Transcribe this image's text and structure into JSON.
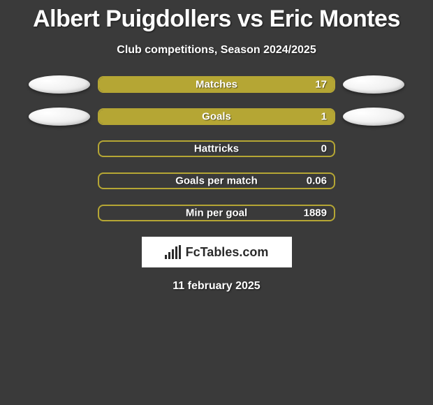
{
  "title": "Albert Puigdollers vs Eric Montes",
  "subtitle": "Club competitions, Season 2024/2025",
  "date": "11 february 2025",
  "logo_text": "FcTables.com",
  "background_color": "#3a3a3a",
  "bar_border_color": "#b5a634",
  "bar_fill_color": "#b5a634",
  "text_color": "#ffffff",
  "orb_color": "#e8e8e8",
  "stats": [
    {
      "label": "Matches",
      "value_text": "17",
      "fill_pct": 100,
      "left_orb": true,
      "right_orb": true
    },
    {
      "label": "Goals",
      "value_text": "1",
      "fill_pct": 100,
      "left_orb": true,
      "right_orb": true
    },
    {
      "label": "Hattricks",
      "value_text": "0",
      "fill_pct": 0,
      "left_orb": false,
      "right_orb": false
    },
    {
      "label": "Goals per match",
      "value_text": "0.06",
      "fill_pct": 0,
      "left_orb": false,
      "right_orb": false
    },
    {
      "label": "Min per goal",
      "value_text": "1889",
      "fill_pct": 0,
      "left_orb": false,
      "right_orb": false
    }
  ]
}
